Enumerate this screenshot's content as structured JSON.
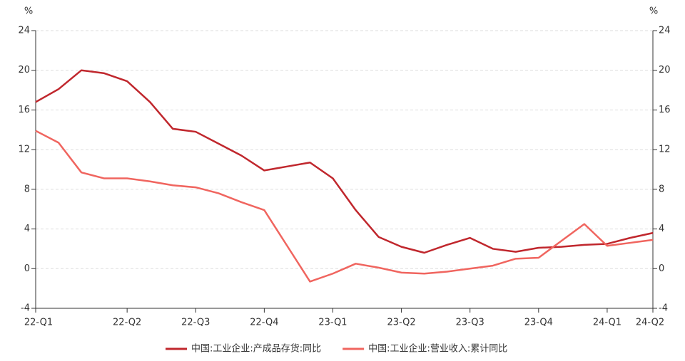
{
  "chart_data": {
    "type": "line",
    "y_label": "%",
    "y2_label": "%",
    "categories": [
      "22-Q1",
      null,
      null,
      null,
      "22-Q2",
      null,
      null,
      "22-Q3",
      null,
      null,
      "22-Q4",
      null,
      null,
      "23-Q1",
      null,
      null,
      "23-Q2",
      null,
      null,
      "23-Q3",
      null,
      null,
      "23-Q4",
      null,
      null,
      "24-Q1",
      null,
      "24-Q2"
    ],
    "series": [
      {
        "name": "中国:工业企业:产成品存货:同比",
        "color": "#c0272d",
        "values": [
          16.8,
          18.1,
          20.0,
          19.7,
          18.9,
          16.8,
          14.1,
          13.8,
          12.6,
          11.4,
          9.9,
          10.3,
          10.7,
          9.1,
          5.9,
          3.2,
          2.2,
          1.6,
          2.4,
          3.1,
          2.0,
          1.7,
          2.1,
          2.2,
          2.4,
          2.5,
          3.1,
          3.6
        ]
      },
      {
        "name": "中国:工业企业:营业收入:累计同比",
        "color": "#f0655f",
        "axis": "y2",
        "values": [
          13.9,
          12.7,
          9.7,
          9.1,
          9.1,
          8.8,
          8.4,
          8.2,
          7.6,
          6.7,
          5.9,
          2.3,
          -1.3,
          -0.5,
          0.5,
          0.1,
          -0.4,
          -0.5,
          -0.3,
          0.0,
          0.3,
          1.0,
          1.1,
          2.8,
          4.5,
          2.3,
          2.6,
          2.9
        ]
      }
    ],
    "ylim": [
      -4,
      24
    ],
    "yticks": [
      -4,
      0,
      4,
      8,
      12,
      16,
      20,
      24
    ],
    "y2lim": [
      -4,
      24
    ],
    "y2ticks": [
      -4,
      0,
      4,
      8,
      12,
      16,
      20,
      24
    ],
    "grid": true,
    "legend": "bottom"
  }
}
